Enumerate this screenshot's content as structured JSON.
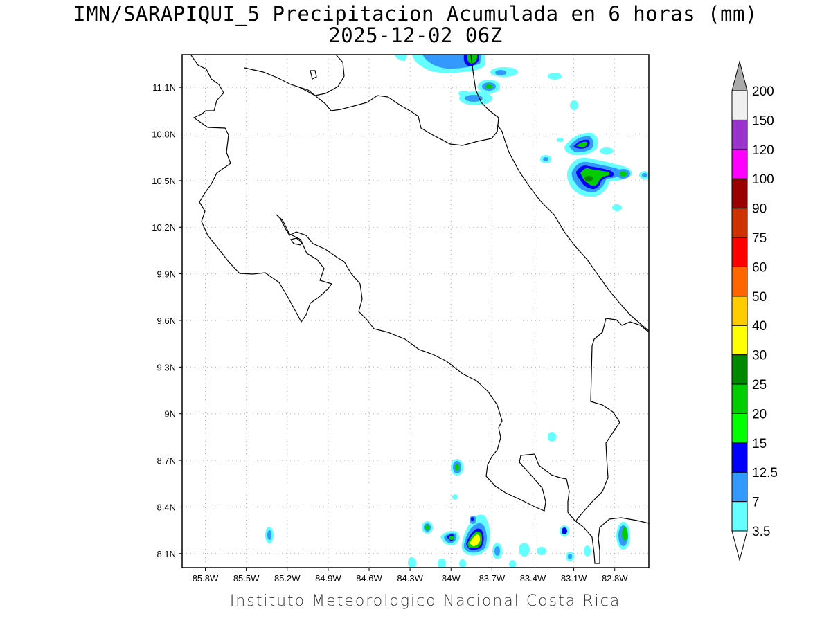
{
  "title_line1": "IMN/SARAPIQUI_5 Precipitacion Acumulada en 6 horas (mm)",
  "title_line2": "2025-12-02 06Z",
  "credit": "Instituto Meteorologico Nacional Costa Rica",
  "map": {
    "lon_ticks": [
      "85.8W",
      "85.5W",
      "85.2W",
      "84.9W",
      "84.6W",
      "84.3W",
      "84W",
      "83.7W",
      "83.4W",
      "83.1W",
      "82.8W"
    ],
    "lat_ticks": [
      "11.1N",
      "10.8N",
      "10.5N",
      "10.2N",
      "9.9N",
      "9.6N",
      "9.3N",
      "9N",
      "8.7N",
      "8.4N",
      "8.1N"
    ],
    "lon_range": [
      -85.97,
      -82.55
    ],
    "lat_range": [
      8.01,
      11.31
    ]
  },
  "colorbar": {
    "labels": [
      "3.5",
      "7",
      "12.5",
      "15",
      "20",
      "25",
      "30",
      "40",
      "50",
      "60",
      "75",
      "90",
      "100",
      "120",
      "150",
      "200"
    ],
    "colors": [
      "#66ffff",
      "#3399ff",
      "#0000ff",
      "#00ff00",
      "#00cc00",
      "#008800",
      "#ffff00",
      "#ffcc00",
      "#ff6600",
      "#ff0000",
      "#cc3300",
      "#990000",
      "#ff00ff",
      "#9933cc",
      "#f0f0f0",
      "#aaaaaa"
    ]
  }
}
